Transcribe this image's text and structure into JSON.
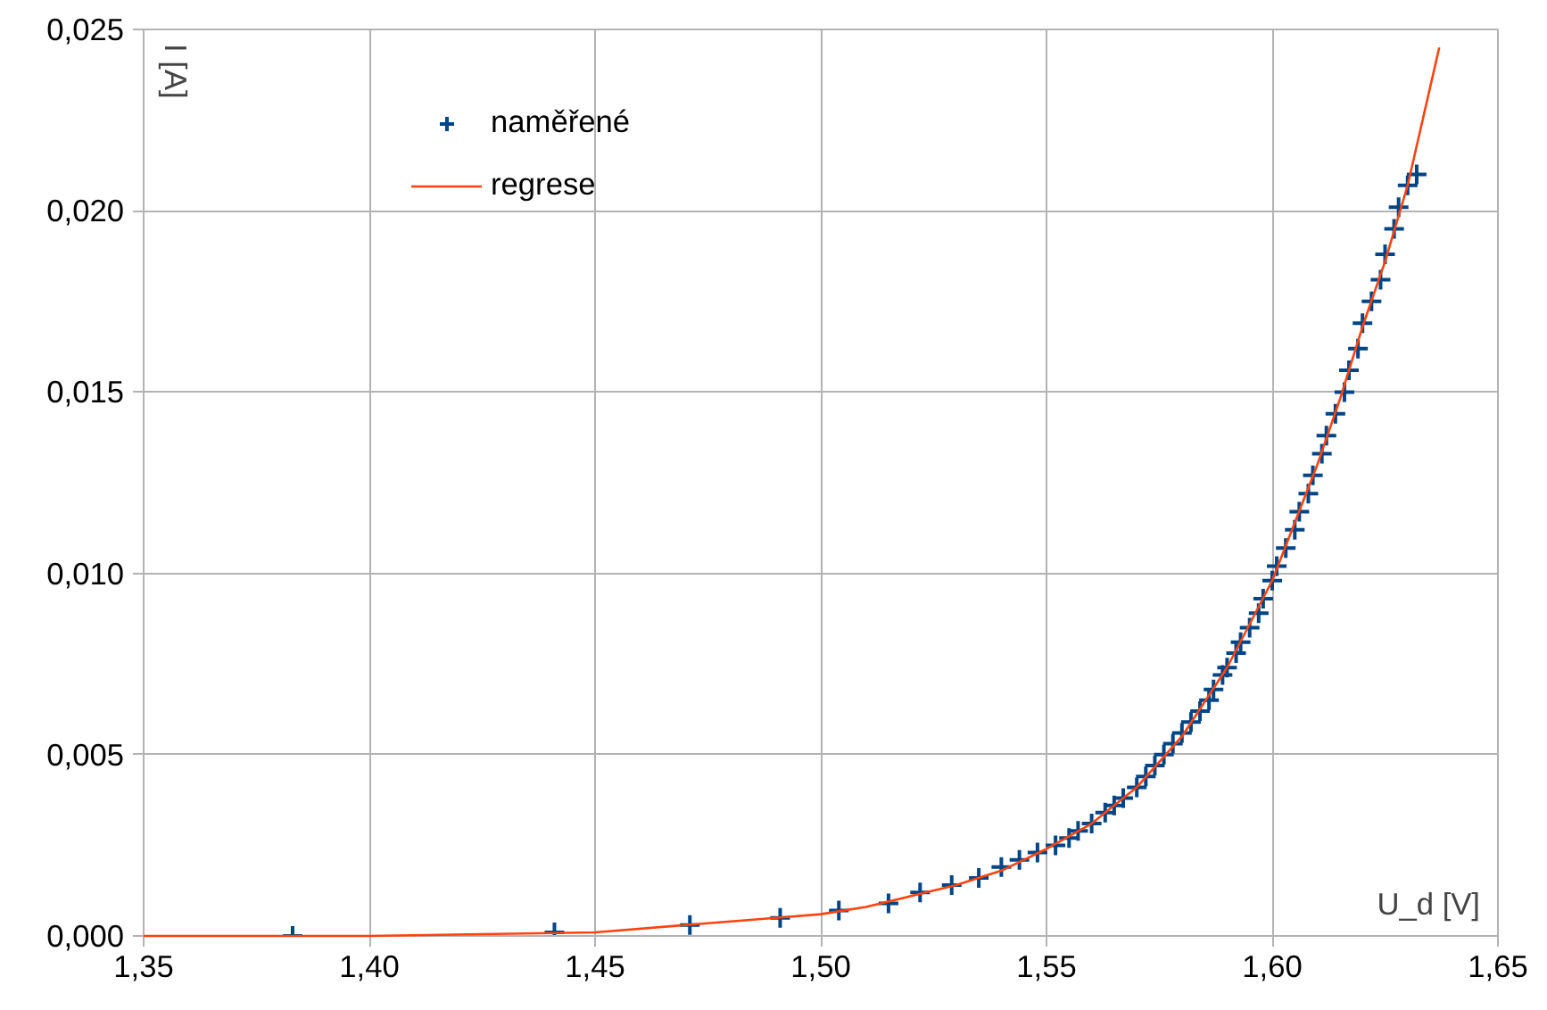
{
  "chart_data": {
    "type": "scatter",
    "xlabel": "U_d [V]",
    "ylabel": "I [A]",
    "xlim": [
      1.35,
      1.65
    ],
    "ylim": [
      0,
      0.025
    ],
    "xticks": [
      {
        "value": 1.35,
        "label": "1,35"
      },
      {
        "value": 1.4,
        "label": "1,40"
      },
      {
        "value": 1.45,
        "label": "1,45"
      },
      {
        "value": 1.5,
        "label": "1,50"
      },
      {
        "value": 1.55,
        "label": "1,55"
      },
      {
        "value": 1.6,
        "label": "1,60"
      },
      {
        "value": 1.65,
        "label": "1,65"
      }
    ],
    "yticks": [
      {
        "value": 0,
        "label": "0,000"
      },
      {
        "value": 0.005,
        "label": "0,005"
      },
      {
        "value": 0.01,
        "label": "0,010"
      },
      {
        "value": 0.015,
        "label": "0,015"
      },
      {
        "value": 0.02,
        "label": "0,020"
      },
      {
        "value": 0.025,
        "label": "0,025"
      }
    ],
    "grid": true,
    "legend": "top left",
    "series": [
      {
        "name": "naměřené",
        "marker": "cross",
        "color": "#004586",
        "x": [
          1.383,
          1.441,
          1.471,
          1.491,
          1.504,
          1.515,
          1.522,
          1.529,
          1.535,
          1.54,
          1.544,
          1.548,
          1.552,
          1.555,
          1.557,
          1.56,
          1.563,
          1.565,
          1.567,
          1.57,
          1.572,
          1.574,
          1.576,
          1.578,
          1.58,
          1.582,
          1.584,
          1.586,
          1.587,
          1.589,
          1.59,
          1.592,
          1.593,
          1.595,
          1.597,
          1.598,
          1.6,
          1.601,
          1.603,
          1.605,
          1.606,
          1.608,
          1.609,
          1.611,
          1.612,
          1.614,
          1.616,
          1.617,
          1.619,
          1.62,
          1.622,
          1.624,
          1.625,
          1.627,
          1.628,
          1.63,
          1.632
        ],
        "values": [
          0.0,
          0.0001,
          0.0003,
          0.0005,
          0.0007,
          0.0009,
          0.0012,
          0.0014,
          0.0016,
          0.0019,
          0.0021,
          0.0023,
          0.0025,
          0.0027,
          0.0029,
          0.0031,
          0.0034,
          0.0036,
          0.0038,
          0.0041,
          0.0044,
          0.0047,
          0.005,
          0.0053,
          0.0056,
          0.0059,
          0.0062,
          0.0065,
          0.0068,
          0.0072,
          0.0074,
          0.0078,
          0.0081,
          0.0085,
          0.0089,
          0.0093,
          0.0098,
          0.0102,
          0.0107,
          0.0112,
          0.0117,
          0.0122,
          0.0127,
          0.0133,
          0.0138,
          0.0144,
          0.015,
          0.0156,
          0.0162,
          0.0169,
          0.0175,
          0.0181,
          0.0188,
          0.0195,
          0.0201,
          0.0207,
          0.021
        ]
      },
      {
        "name": "regrese",
        "type": "line",
        "color": "#ff420e",
        "line_style": "solid",
        "x": [
          1.35,
          1.4,
          1.45,
          1.47,
          1.49,
          1.5,
          1.51,
          1.52,
          1.53,
          1.54,
          1.55,
          1.56,
          1.57,
          1.58,
          1.59,
          1.595,
          1.6,
          1.605,
          1.61,
          1.615,
          1.62,
          1.625,
          1.63,
          1.637
        ],
        "values": [
          0.0,
          0.0,
          0.0001,
          0.0003,
          0.0005,
          0.0006,
          0.0008,
          0.0011,
          0.0014,
          0.0018,
          0.0024,
          0.0031,
          0.0041,
          0.0055,
          0.0074,
          0.0086,
          0.0098,
          0.0114,
          0.013,
          0.0148,
          0.0168,
          0.0186,
          0.0207,
          0.0245
        ]
      }
    ]
  }
}
